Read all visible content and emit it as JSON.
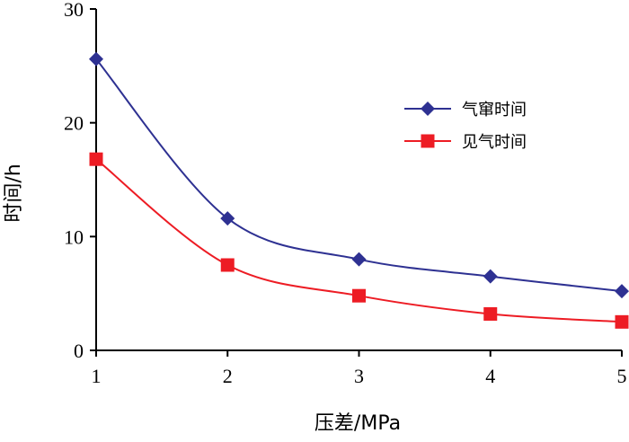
{
  "chart_data": {
    "type": "line",
    "x": [
      1,
      2,
      3,
      4,
      5
    ],
    "xlabel": "压差/MPa",
    "ylabel": "时间/h",
    "xlim": [
      1,
      5
    ],
    "ylim": [
      0,
      30
    ],
    "x_ticks": [
      "1",
      "2",
      "3",
      "4",
      "5"
    ],
    "y_ticks": [
      "0",
      "10",
      "20",
      "30"
    ],
    "grid": false,
    "legend_position": "top-right",
    "series": [
      {
        "name": "气窜时间",
        "values": [
          25.6,
          11.6,
          8.0,
          6.5,
          5.2
        ],
        "color": "#2e3192",
        "marker": "diamond"
      },
      {
        "name": "见气时间",
        "values": [
          16.8,
          7.5,
          4.8,
          3.2,
          2.5
        ],
        "color": "#ed1c24",
        "marker": "square"
      }
    ]
  }
}
